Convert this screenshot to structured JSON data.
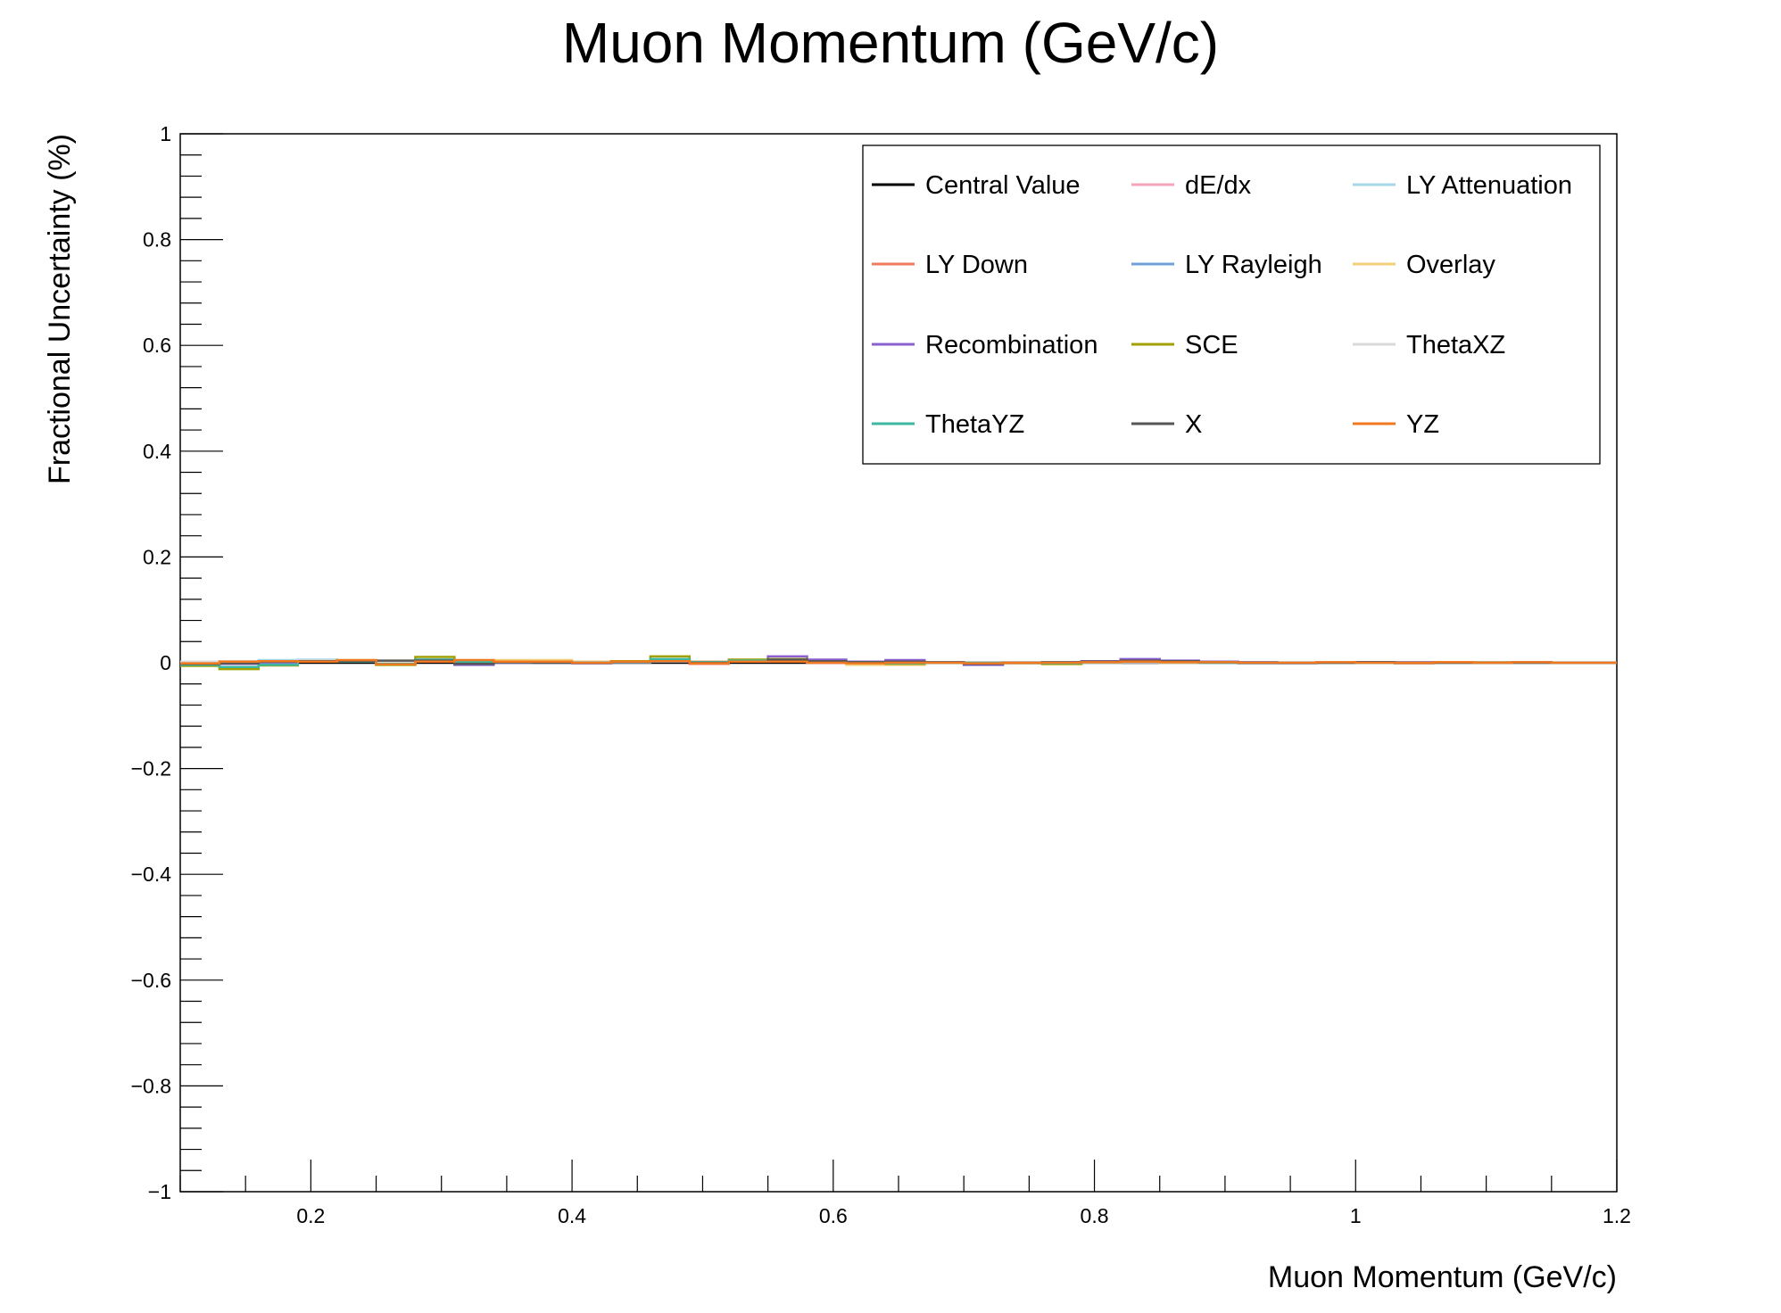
{
  "chart_data": {
    "type": "line",
    "title": "Muon Momentum (GeV/c)",
    "xlabel": "Muon Momentum (GeV/c)",
    "ylabel": "Fractional Uncertainty (%)",
    "xlim": [
      0.1,
      1.2
    ],
    "ylim": [
      -1,
      1
    ],
    "x_ticks": [
      0.2,
      0.4,
      0.6,
      0.8,
      1,
      1.2
    ],
    "x_tick_labels": [
      "0.2",
      "0.4",
      "0.6",
      "0.8",
      "1",
      "1.2"
    ],
    "y_ticks": [
      -1,
      -0.8,
      -0.6,
      -0.4,
      -0.2,
      0,
      0.2,
      0.4,
      0.6,
      0.8,
      1
    ],
    "y_tick_labels": [
      "−1",
      "−0.8",
      "−0.6",
      "−0.4",
      "−0.2",
      "0",
      "0.2",
      "0.4",
      "0.6",
      "0.8",
      "1"
    ],
    "grid": false,
    "legend_position": "top-right",
    "bin_edges": [
      0.1,
      0.13,
      0.16,
      0.19,
      0.22,
      0.25,
      0.28,
      0.31,
      0.34,
      0.37,
      0.4,
      0.43,
      0.46,
      0.49,
      0.52,
      0.55,
      0.58,
      0.61,
      0.64,
      0.67,
      0.7,
      0.73,
      0.76,
      0.79,
      0.82,
      0.85,
      0.88,
      0.91,
      0.94,
      0.97,
      1.0,
      1.03,
      1.06,
      1.09,
      1.12,
      1.15,
      1.2
    ],
    "series": [
      {
        "name": "Central Value",
        "color": "#000000",
        "values": [
          0,
          0,
          0,
          0,
          0,
          0,
          0,
          0,
          0,
          0,
          0,
          0,
          0,
          0,
          0,
          0,
          0,
          0,
          0,
          0,
          0,
          0,
          0,
          0,
          0,
          0,
          0,
          0,
          0,
          0,
          0,
          0,
          0,
          0,
          0,
          0
        ]
      },
      {
        "name": "dE/dx",
        "color": "#f4a3b8",
        "values": [
          0.002,
          -0.002,
          0.002,
          0.003,
          0.002,
          -0.002,
          0.004,
          0.001,
          0.001,
          0.002,
          -0.001,
          0.002,
          0.003,
          -0.001,
          0.002,
          0.004,
          0.002,
          0.001,
          -0.001,
          0.001,
          0.001,
          -0.001,
          0.001,
          0.001,
          0.002,
          0,
          0.001,
          0,
          -0.001,
          0.001,
          0,
          0,
          0,
          0.001,
          0,
          0
        ]
      },
      {
        "name": "LY Attenuation",
        "color": "#a6d8ea",
        "values": [
          0.001,
          0.003,
          0.005,
          0.006,
          0.002,
          0,
          0.003,
          0.001,
          0.002,
          0.001,
          0.001,
          0.001,
          0.002,
          0.001,
          0.002,
          0.003,
          0.001,
          0,
          0.001,
          0,
          0,
          0,
          0.001,
          0,
          0.001,
          0.001,
          0,
          0,
          0,
          0.001,
          0,
          0,
          0,
          0,
          0,
          0
        ]
      },
      {
        "name": "LY Down",
        "color": "#f07a5e",
        "values": [
          -0.002,
          0.002,
          0.003,
          0.002,
          0.004,
          -0.002,
          0.002,
          0.004,
          0.002,
          0.001,
          0,
          0.003,
          0.004,
          -0.002,
          0.002,
          0.003,
          0,
          -0.002,
          0.001,
          0,
          -0.002,
          0,
          0,
          0.002,
          0.002,
          0.001,
          0.001,
          0,
          0,
          0.001,
          0,
          -0.001,
          0.001,
          0,
          0.001,
          0
        ]
      },
      {
        "name": "LY Rayleigh",
        "color": "#6fa0d8",
        "values": [
          -0.004,
          -0.002,
          0,
          0.004,
          0.003,
          0.001,
          0.002,
          0,
          0.001,
          0.002,
          0,
          0.002,
          0.002,
          0,
          0.002,
          0.004,
          0.001,
          0,
          0,
          0,
          -0.001,
          0,
          0.001,
          0.001,
          0.001,
          0,
          0,
          -0.001,
          -0.001,
          0.001,
          0,
          0,
          0,
          0.001,
          0,
          0
        ]
      },
      {
        "name": "Overlay",
        "color": "#f2cf7a",
        "values": [
          -0.005,
          0.003,
          0.002,
          0.004,
          0.002,
          -0.004,
          0.004,
          0.002,
          0.005,
          0.005,
          0.002,
          0.003,
          0.004,
          0.003,
          0.004,
          0.003,
          0.003,
          -0.004,
          -0.004,
          0.001,
          0,
          -0.001,
          -0.003,
          0.001,
          0.001,
          0,
          0.001,
          0.001,
          0,
          0,
          0.001,
          0,
          0,
          0.001,
          0,
          0
        ]
      },
      {
        "name": "Recombination",
        "color": "#8a5fcf",
        "values": [
          -0.003,
          -0.002,
          0.001,
          0.003,
          0.003,
          0.002,
          0.006,
          -0.004,
          0,
          0,
          -0.001,
          0.002,
          0.005,
          0,
          0.003,
          0.012,
          0.006,
          0.002,
          0.005,
          0.001,
          -0.004,
          0,
          0.001,
          0.003,
          0.007,
          0.004,
          0.002,
          0.001,
          0,
          0,
          0.001,
          0.001,
          0,
          0,
          0.001,
          0
        ]
      },
      {
        "name": "SCE",
        "color": "#a0a000",
        "values": [
          -0.006,
          -0.012,
          -0.005,
          0.002,
          0.004,
          -0.004,
          0.011,
          0.002,
          0.001,
          0.001,
          0,
          0.003,
          0.012,
          0.002,
          0.006,
          0.007,
          0.002,
          0.001,
          -0.002,
          0,
          0,
          0,
          -0.002,
          0.001,
          0.002,
          0.002,
          0.001,
          0,
          0,
          0,
          0,
          0,
          0,
          0,
          0,
          0
        ]
      },
      {
        "name": "ThetaXZ",
        "color": "#d9d9d9",
        "values": [
          0.002,
          0.003,
          0.003,
          0.004,
          0.003,
          0.002,
          0.003,
          0.002,
          0.002,
          0.002,
          0.001,
          0.002,
          0.003,
          0.002,
          0.002,
          0.003,
          0.002,
          0.001,
          0.001,
          0.001,
          0.001,
          0.001,
          0.001,
          0.001,
          0.001,
          0.001,
          0.001,
          0,
          0,
          0.001,
          0,
          0,
          0,
          0,
          0,
          0
        ]
      },
      {
        "name": "ThetaYZ",
        "color": "#3cb8a0",
        "values": [
          -0.004,
          -0.008,
          -0.004,
          0.003,
          0.002,
          -0.002,
          0.006,
          0.002,
          0.001,
          0.001,
          0,
          0.002,
          0.007,
          0.001,
          0.004,
          0.005,
          0.001,
          0.001,
          -0.001,
          0,
          0,
          0,
          -0.001,
          0.001,
          0.002,
          0.001,
          0,
          0,
          0,
          0,
          0,
          0,
          0,
          0,
          0,
          0
        ]
      },
      {
        "name": "X",
        "color": "#555555",
        "values": [
          -0.002,
          -0.001,
          0.002,
          0.003,
          0.003,
          0.004,
          0.004,
          -0.002,
          0.001,
          0,
          0,
          0.002,
          0.003,
          0,
          0.002,
          0.006,
          0.003,
          0.001,
          0.002,
          0.001,
          -0.002,
          0,
          0.001,
          0.002,
          0.004,
          0.003,
          0.001,
          0,
          0,
          0,
          0.001,
          0,
          0,
          0,
          0,
          0
        ]
      },
      {
        "name": "YZ",
        "color": "#f07820",
        "values": [
          -0.001,
          0.002,
          0.003,
          0.002,
          0.005,
          -0.003,
          0.002,
          0.005,
          0.002,
          0.002,
          0,
          0.002,
          0.003,
          -0.001,
          0.002,
          0.002,
          0,
          -0.001,
          0,
          0,
          -0.001,
          0,
          0,
          0.001,
          0.002,
          0.001,
          0.001,
          0,
          0,
          0.001,
          0,
          0,
          0.001,
          0,
          0.001,
          0
        ]
      }
    ]
  }
}
